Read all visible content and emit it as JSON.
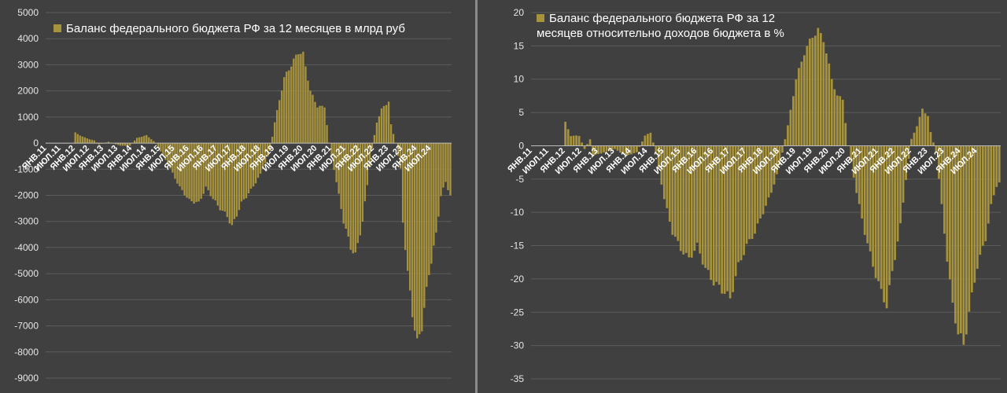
{
  "colors": {
    "bar": "#a8933d",
    "grid": "#5c5c5c",
    "text": "#e6e6e6",
    "background": "#404040"
  },
  "chart_data": [
    {
      "type": "bar",
      "legend": "Баланс федерального бюджета РФ за 12 месяцев в млрд руб",
      "ylim": [
        -9000,
        5000
      ],
      "yticks": [
        "5000",
        "4000",
        "3000",
        "2000",
        "1000",
        "0",
        "-1000",
        "-2000",
        "-3000",
        "-4000",
        "-5000",
        "-6000",
        "-7000",
        "-8000",
        "-9000"
      ],
      "xticks": [
        "ЯНВ.11",
        "ИЮЛ.11",
        "ЯНВ.12",
        "ИЮЛ.12",
        "ЯНВ.13",
        "ИЮЛ.13",
        "ЯНВ.14",
        "ИЮЛ.14",
        "ЯНВ.15",
        "ИЮЛ.15",
        "ЯНВ.16",
        "ИЮЛ.16",
        "ЯНВ.17",
        "ИЮЛ.17",
        "ЯНВ.18",
        "ИЮЛ.18",
        "ЯНВ.19",
        "ИЮЛ.19",
        "ЯНВ.20",
        "ИЮЛ.20",
        "ЯНВ.21",
        "ИЮЛ.21",
        "ЯНВ.22",
        "ИЮЛ.22",
        "ЯНВ.23",
        "ИЮЛ.23",
        "ЯНВ.24",
        "ИЮЛ.24"
      ],
      "anchors": [
        [
          0,
          0
        ],
        [
          11,
          0
        ],
        [
          12,
          400
        ],
        [
          15,
          250
        ],
        [
          18,
          150
        ],
        [
          20,
          100
        ],
        [
          22,
          -50
        ],
        [
          26,
          50
        ],
        [
          31,
          -100
        ],
        [
          35,
          -100
        ],
        [
          38,
          200
        ],
        [
          42,
          300
        ],
        [
          46,
          0
        ],
        [
          51,
          -800
        ],
        [
          56,
          -1700
        ],
        [
          60,
          -2200
        ],
        [
          64,
          -2300
        ],
        [
          67,
          -1700
        ],
        [
          72,
          -2400
        ],
        [
          76,
          -2800
        ],
        [
          78,
          -3200
        ],
        [
          82,
          -2300
        ],
        [
          86,
          -1800
        ],
        [
          90,
          -1200
        ],
        [
          94,
          -300
        ],
        [
          96,
          800
        ],
        [
          100,
          2500
        ],
        [
          103,
          3000
        ],
        [
          106,
          3500
        ],
        [
          108,
          3400
        ],
        [
          111,
          2000
        ],
        [
          114,
          1400
        ],
        [
          117,
          1400
        ],
        [
          119,
          0
        ],
        [
          122,
          -1500
        ],
        [
          125,
          -3000
        ],
        [
          128,
          -4000
        ],
        [
          130,
          -4300
        ],
        [
          133,
          -3000
        ],
        [
          135,
          -1600
        ],
        [
          137,
          -200
        ],
        [
          139,
          800
        ],
        [
          141,
          1300
        ],
        [
          144,
          1600
        ],
        [
          145,
          700
        ],
        [
          147,
          0
        ],
        [
          149,
          -1000
        ],
        [
          150,
          -3000
        ],
        [
          152,
          -5000
        ],
        [
          154,
          -6500
        ],
        [
          156,
          -7700
        ],
        [
          158,
          -7000
        ],
        [
          161,
          -5000
        ],
        [
          164,
          -3500
        ],
        [
          166,
          -2000
        ],
        [
          168,
          -1500
        ],
        [
          170,
          -2000
        ]
      ]
    },
    {
      "type": "bar",
      "legend": "Баланс федерального бюджета РФ за 12 месяцев относительно доходов бюджета в %",
      "ylim": [
        -35,
        20
      ],
      "yticks": [
        "20",
        "15",
        "10",
        "5",
        "0",
        "-5",
        "-10",
        "-15",
        "-20",
        "-25",
        "-30",
        "-35"
      ],
      "xticks": [
        "ЯНВ.11",
        "ИЮЛ.11",
        "ЯНВ.12",
        "ИЮЛ.12",
        "ЯНВ.13",
        "ИЮЛ.13",
        "ЯНВ.14",
        "ИЮЛ.14",
        "ЯНВ.15",
        "ИЮЛ.15",
        "ЯНВ.16",
        "ИЮЛ.16",
        "ЯНВ.17",
        "ИЮЛ.17",
        "ЯНВ.18",
        "ИЮЛ.18",
        "ЯНВ.19",
        "ИЮЛ.19",
        "ЯНВ.20",
        "ИЮЛ.20",
        "ЯНВ.21",
        "ИЮЛ.21",
        "ЯНВ.22",
        "ИЮЛ.22",
        "ЯНВ.23",
        "ИЮЛ.23",
        "ЯНВ.24",
        "ИЮЛ.24"
      ],
      "anchors": [
        [
          0,
          0
        ],
        [
          11,
          0
        ],
        [
          12,
          3.5
        ],
        [
          14,
          1.5
        ],
        [
          17,
          1.5
        ],
        [
          19,
          -0.5
        ],
        [
          21,
          1
        ],
        [
          22,
          -1.5
        ],
        [
          26,
          -1
        ],
        [
          30,
          -0.5
        ],
        [
          34,
          -1.5
        ],
        [
          38,
          -1
        ],
        [
          41,
          1.5
        ],
        [
          43,
          2
        ],
        [
          45,
          -1
        ],
        [
          48,
          -8
        ],
        [
          51,
          -13
        ],
        [
          54,
          -15.5
        ],
        [
          57,
          -17
        ],
        [
          60,
          -15
        ],
        [
          63,
          -18.5
        ],
        [
          66,
          -20.5
        ],
        [
          70,
          -22
        ],
        [
          72,
          -23
        ],
        [
          75,
          -18
        ],
        [
          78,
          -15
        ],
        [
          81,
          -13
        ],
        [
          84,
          -10
        ],
        [
          87,
          -7
        ],
        [
          90,
          -3
        ],
        [
          93,
          3
        ],
        [
          96,
          10
        ],
        [
          99,
          14
        ],
        [
          102,
          16.5
        ],
        [
          104,
          17.3
        ],
        [
          106,
          16
        ],
        [
          109,
          10
        ],
        [
          111,
          7.5
        ],
        [
          113,
          7
        ],
        [
          115,
          0
        ],
        [
          118,
          -7
        ],
        [
          121,
          -13
        ],
        [
          124,
          -18
        ],
        [
          127,
          -22
        ],
        [
          129,
          -24
        ],
        [
          131,
          -19
        ],
        [
          134,
          -12
        ],
        [
          136,
          -5
        ],
        [
          138,
          1
        ],
        [
          140,
          3
        ],
        [
          142,
          5.5
        ],
        [
          144,
          4.5
        ],
        [
          145,
          2
        ],
        [
          147,
          -1
        ],
        [
          149,
          -9
        ],
        [
          151,
          -17
        ],
        [
          153,
          -24
        ],
        [
          155,
          -28
        ],
        [
          157,
          -30
        ],
        [
          159,
          -25
        ],
        [
          162,
          -18
        ],
        [
          165,
          -14
        ],
        [
          167,
          -9
        ],
        [
          169,
          -6
        ],
        [
          170,
          -5.5
        ]
      ]
    }
  ]
}
